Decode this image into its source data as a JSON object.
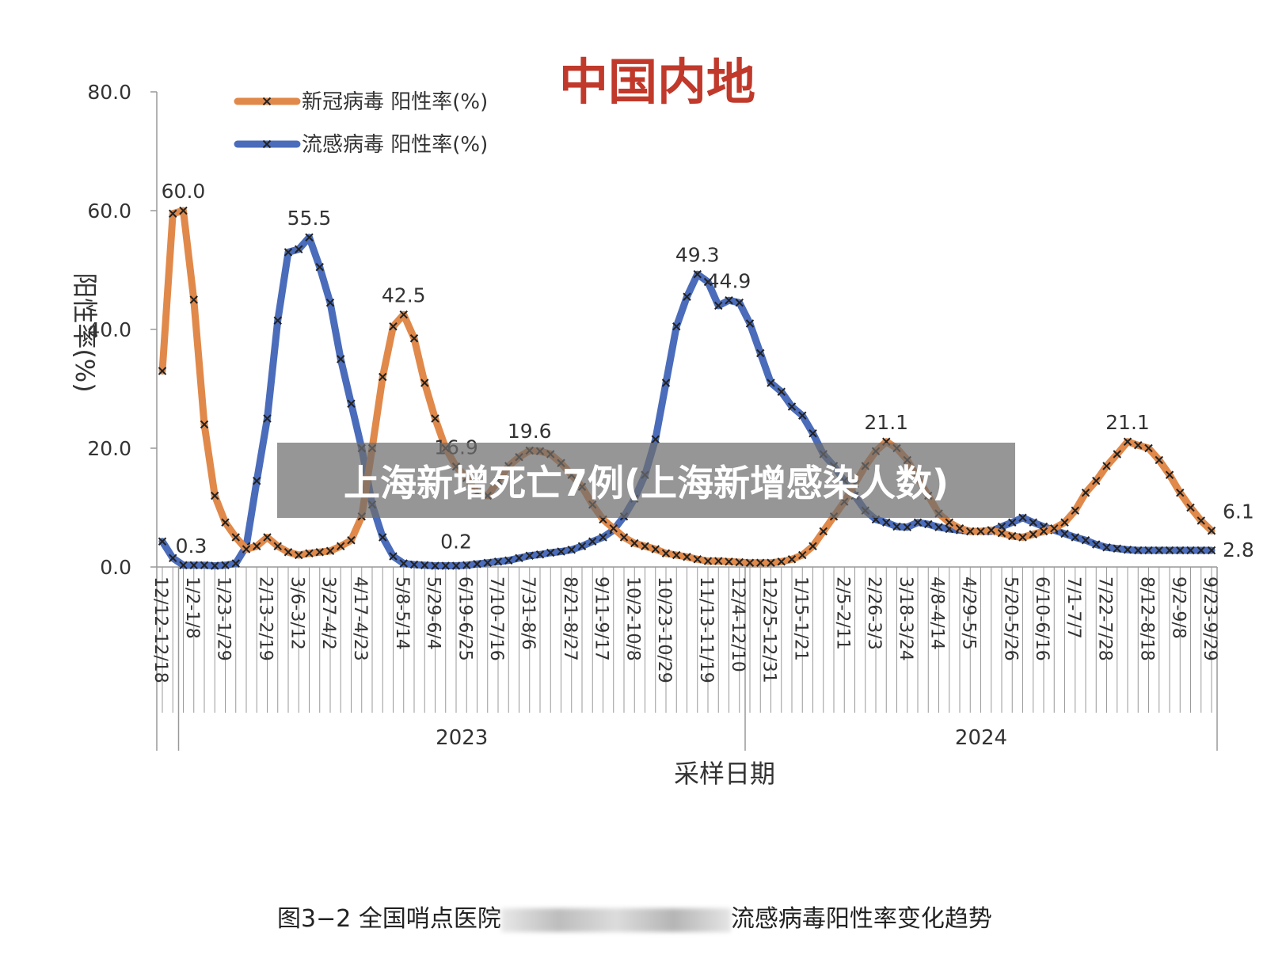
{
  "chart_data": {
    "type": "line",
    "region_title": "中国内地",
    "ylabel": "阳性率(%)",
    "xlabel": "采样日期",
    "ylim": [
      0,
      80
    ],
    "y_ticks": [
      "0.0",
      "20.0",
      "40.0",
      "60.0",
      "80.0"
    ],
    "tick_labels": [
      "12/12-12/18",
      "1/2-1/8",
      "1/23-1/29",
      "2/13-2/19",
      "3/6-3/12",
      "3/27-4/2",
      "4/17-4/23",
      "5/8-5/14",
      "5/29-6/4",
      "6/19-6/25",
      "7/10-7/16",
      "7/31-8/6",
      "8/21-8/27",
      "9/11-9/17",
      "10/2-10/8",
      "10/23-10/29",
      "11/13-11/19",
      "12/4-12/10",
      "12/25-12/31",
      "1/15-1/21",
      "2/5-2/11",
      "2/26-3/3",
      "3/18-3/24",
      "4/8-4/14",
      "4/29-5/5",
      "5/20-5/26",
      "6/10-6/16",
      "7/1-7/7",
      "7/22-7/28",
      "8/12-8/18",
      "9/2-9/8",
      "9/23-9/29"
    ],
    "years": [
      "2023",
      "2024"
    ],
    "series": [
      {
        "name": "新冠病毒 阳性率(%)",
        "color": "#e0894a",
        "values": [
          33.0,
          59.5,
          60.0,
          45.0,
          24.0,
          12.0,
          7.5,
          5.0,
          3.0,
          3.5,
          5.0,
          3.5,
          2.5,
          2.0,
          2.3,
          2.5,
          2.7,
          3.5,
          4.5,
          8.5,
          20.0,
          32.0,
          40.5,
          42.5,
          38.5,
          31.0,
          25.0,
          20.0,
          16.9,
          15.0,
          12.5,
          12.0,
          14.5,
          17.0,
          18.5,
          19.6,
          19.5,
          19.0,
          17.5,
          15.5,
          13.5,
          10.5,
          8.0,
          6.5,
          5.0,
          4.0,
          3.5,
          3.0,
          2.3,
          2.0,
          1.7,
          1.3,
          1.0,
          1.0,
          0.9,
          0.8,
          0.7,
          0.7,
          0.7,
          0.9,
          1.3,
          2.0,
          3.5,
          6.0,
          8.5,
          11.0,
          14.0,
          17.0,
          19.5,
          21.1,
          20.0,
          18.0,
          15.0,
          12.0,
          9.0,
          7.5,
          6.5,
          6.0,
          6.0,
          6.2,
          5.7,
          5.2,
          5.0,
          5.5,
          6.0,
          6.5,
          7.5,
          9.5,
          12.5,
          14.5,
          17.0,
          19.0,
          21.1,
          20.5,
          20.0,
          18.0,
          15.5,
          12.5,
          10.0,
          7.8,
          6.1
        ]
      },
      {
        "name": "流感病毒 阳性率(%)",
        "color": "#4a6cba",
        "values": [
          4.3,
          1.5,
          0.3,
          0.3,
          0.3,
          0.2,
          0.3,
          0.6,
          3.5,
          14.5,
          25.0,
          41.5,
          53.0,
          53.5,
          55.5,
          50.5,
          44.5,
          35.0,
          27.5,
          20.0,
          10.5,
          5.0,
          1.8,
          0.6,
          0.4,
          0.3,
          0.2,
          0.2,
          0.2,
          0.3,
          0.5,
          0.7,
          0.9,
          1.1,
          1.5,
          1.9,
          2.1,
          2.4,
          2.6,
          2.9,
          3.5,
          4.3,
          5.0,
          6.2,
          8.5,
          11.5,
          15.5,
          21.5,
          31.0,
          40.5,
          45.5,
          49.3,
          48.0,
          44.0,
          44.9,
          44.5,
          41.0,
          36.0,
          31.0,
          29.5,
          27.0,
          25.5,
          22.5,
          19.0,
          17.0,
          14.5,
          12.0,
          9.5,
          8.0,
          7.5,
          6.8,
          6.7,
          7.5,
          7.2,
          6.7,
          6.4,
          6.2,
          6.0,
          6.0,
          6.0,
          6.8,
          7.5,
          8.3,
          7.5,
          6.8,
          6.2,
          5.6,
          5.0,
          4.5,
          3.8,
          3.3,
          3.1,
          2.9,
          2.8,
          2.8,
          2.8,
          2.8,
          2.8,
          2.8,
          2.8,
          2.8
        ]
      }
    ],
    "annotations": [
      {
        "series": 0,
        "index": 2,
        "text": "60.0"
      },
      {
        "series": 1,
        "index": 2,
        "text": "0.3"
      },
      {
        "series": 1,
        "index": 14,
        "text": "55.5"
      },
      {
        "series": 0,
        "index": 23,
        "text": "42.5"
      },
      {
        "series": 0,
        "index": 28,
        "text": "16.9"
      },
      {
        "series": 1,
        "index": 28,
        "text": "0.2"
      },
      {
        "series": 0,
        "index": 35,
        "text": "19.6"
      },
      {
        "series": 1,
        "index": 51,
        "text": "49.3"
      },
      {
        "series": 1,
        "index": 54,
        "text": "44.9"
      },
      {
        "series": 0,
        "index": 69,
        "text": "21.1"
      },
      {
        "series": 0,
        "index": 92,
        "text": "21.1"
      },
      {
        "series": 0,
        "index": 100,
        "text": "6.1"
      },
      {
        "series": 1,
        "index": 100,
        "text": "2.8"
      }
    ]
  },
  "overlay_text": "上海新增死亡7例(上海新增感染人数)",
  "caption": {
    "prefix": "图3−2 全国哨点医院",
    "suffix": "流感病毒阳性率变化趋势"
  }
}
